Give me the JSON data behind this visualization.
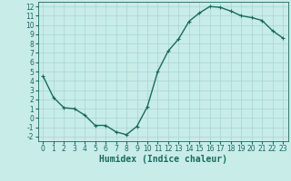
{
  "x": [
    0,
    1,
    2,
    3,
    4,
    5,
    6,
    7,
    8,
    9,
    10,
    11,
    12,
    13,
    14,
    15,
    16,
    17,
    18,
    19,
    20,
    21,
    22,
    23
  ],
  "y": [
    4.5,
    2.2,
    1.1,
    1.0,
    0.3,
    -0.8,
    -0.8,
    -1.5,
    -1.8,
    -0.9,
    1.2,
    5.0,
    7.2,
    8.5,
    10.4,
    11.3,
    12.0,
    11.9,
    11.5,
    11.0,
    10.8,
    10.5,
    9.4,
    8.6
  ],
  "line_color": "#1a6b5a",
  "marker": "+",
  "markersize": 3,
  "linewidth": 1.0,
  "bg_color": "#c8ece8",
  "grid_color": "#a8d4d0",
  "xlabel": "Humidex (Indice chaleur)",
  "xlim": [
    -0.5,
    23.5
  ],
  "ylim": [
    -2.5,
    12.5
  ],
  "xticks": [
    0,
    1,
    2,
    3,
    4,
    5,
    6,
    7,
    8,
    9,
    10,
    11,
    12,
    13,
    14,
    15,
    16,
    17,
    18,
    19,
    20,
    21,
    22,
    23
  ],
  "yticks": [
    -2,
    -1,
    0,
    1,
    2,
    3,
    4,
    5,
    6,
    7,
    8,
    9,
    10,
    11,
    12
  ],
  "tick_fontsize": 5.5,
  "label_fontsize": 7
}
